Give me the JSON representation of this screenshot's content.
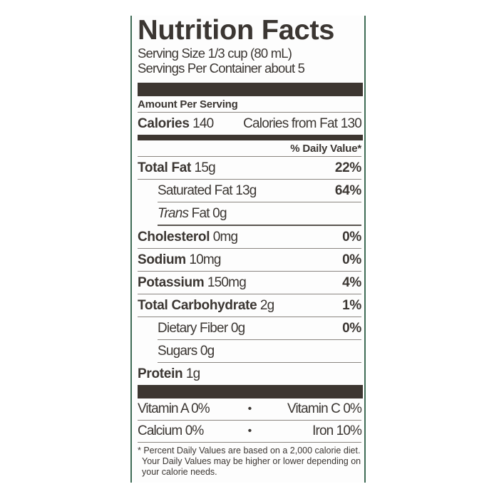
{
  "title": "Nutrition Facts",
  "serving_size": "Serving Size 1/3 cup (80 mL)",
  "servings_per_container": "Servings Per Container about 5",
  "amount_per_serving": "Amount Per Serving",
  "calories": {
    "label": "Calories",
    "value": "140",
    "from_fat": "Calories from Fat 130"
  },
  "daily_value_header": "% Daily Value*",
  "nutrients": [
    {
      "label": "Total Fat",
      "amount": "15g",
      "dv": "22%"
    },
    {
      "label": "Saturated Fat",
      "amount": "13g",
      "dv": "64%"
    },
    {
      "label": "Trans",
      "amount": "Fat 0g",
      "dv": ""
    },
    {
      "label": "Cholesterol",
      "amount": "0mg",
      "dv": "0%"
    },
    {
      "label": "Sodium",
      "amount": "10mg",
      "dv": "0%"
    },
    {
      "label": "Potassium",
      "amount": "150mg",
      "dv": "4%"
    },
    {
      "label": "Total Carbohydrate",
      "amount": "2g",
      "dv": "1%"
    },
    {
      "label": "Dietary Fiber",
      "amount": "0g",
      "dv": "0%"
    },
    {
      "label": "Sugars",
      "amount": "0g",
      "dv": ""
    },
    {
      "label": "Protein",
      "amount": "1g",
      "dv": ""
    }
  ],
  "vitamins": [
    {
      "left": "Vitamin A 0%",
      "sep": "•",
      "right": "Vitamin C 0%"
    },
    {
      "left": "Calcium 0%",
      "sep": "•",
      "right": "Iron 10%"
    }
  ],
  "footnote": "* Percent Daily Values are based on a 2,000 calorie diet. Your Daily Values may be higher or lower depending on your calorie needs.",
  "colors": {
    "text": "#3b3632",
    "bars": "#3d3631",
    "border": "#3e6b55"
  }
}
